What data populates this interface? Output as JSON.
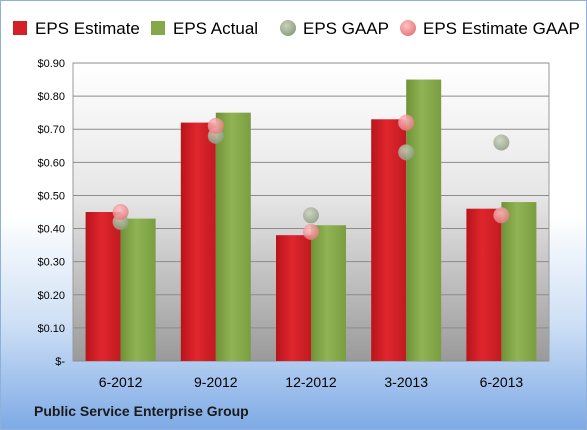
{
  "chart_data": {
    "type": "bar",
    "categories": [
      "6-2012",
      "9-2012",
      "12-2012",
      "3-2013",
      "6-2013"
    ],
    "series": [
      {
        "name": "EPS Estimate",
        "kind": "bar",
        "color": "#d42128",
        "values": [
          0.45,
          0.72,
          0.38,
          0.73,
          0.46
        ]
      },
      {
        "name": "EPS Actual",
        "kind": "bar",
        "color": "#86a84a",
        "values": [
          0.43,
          0.75,
          0.41,
          0.85,
          0.48
        ]
      },
      {
        "name": "EPS GAAP",
        "kind": "scatter",
        "color": "#9aaa8c",
        "values": [
          0.42,
          0.68,
          0.44,
          0.63,
          0.66
        ]
      },
      {
        "name": "EPS Estimate GAAP",
        "kind": "scatter",
        "color": "#ee8f93",
        "values": [
          0.45,
          0.71,
          0.39,
          0.72,
          0.44
        ]
      }
    ],
    "yticks": [
      "$-",
      "$0.10",
      "$0.20",
      "$0.30",
      "$0.40",
      "$0.50",
      "$0.60",
      "$0.70",
      "$0.80",
      "$0.90"
    ],
    "ylim": [
      0,
      0.9
    ],
    "grid": true,
    "legend_position": "top",
    "plot_background": "gradient-gray",
    "title": "",
    "xlabel": "",
    "ylabel": ""
  },
  "footer": {
    "company": "Public Service Enterprise Group"
  }
}
